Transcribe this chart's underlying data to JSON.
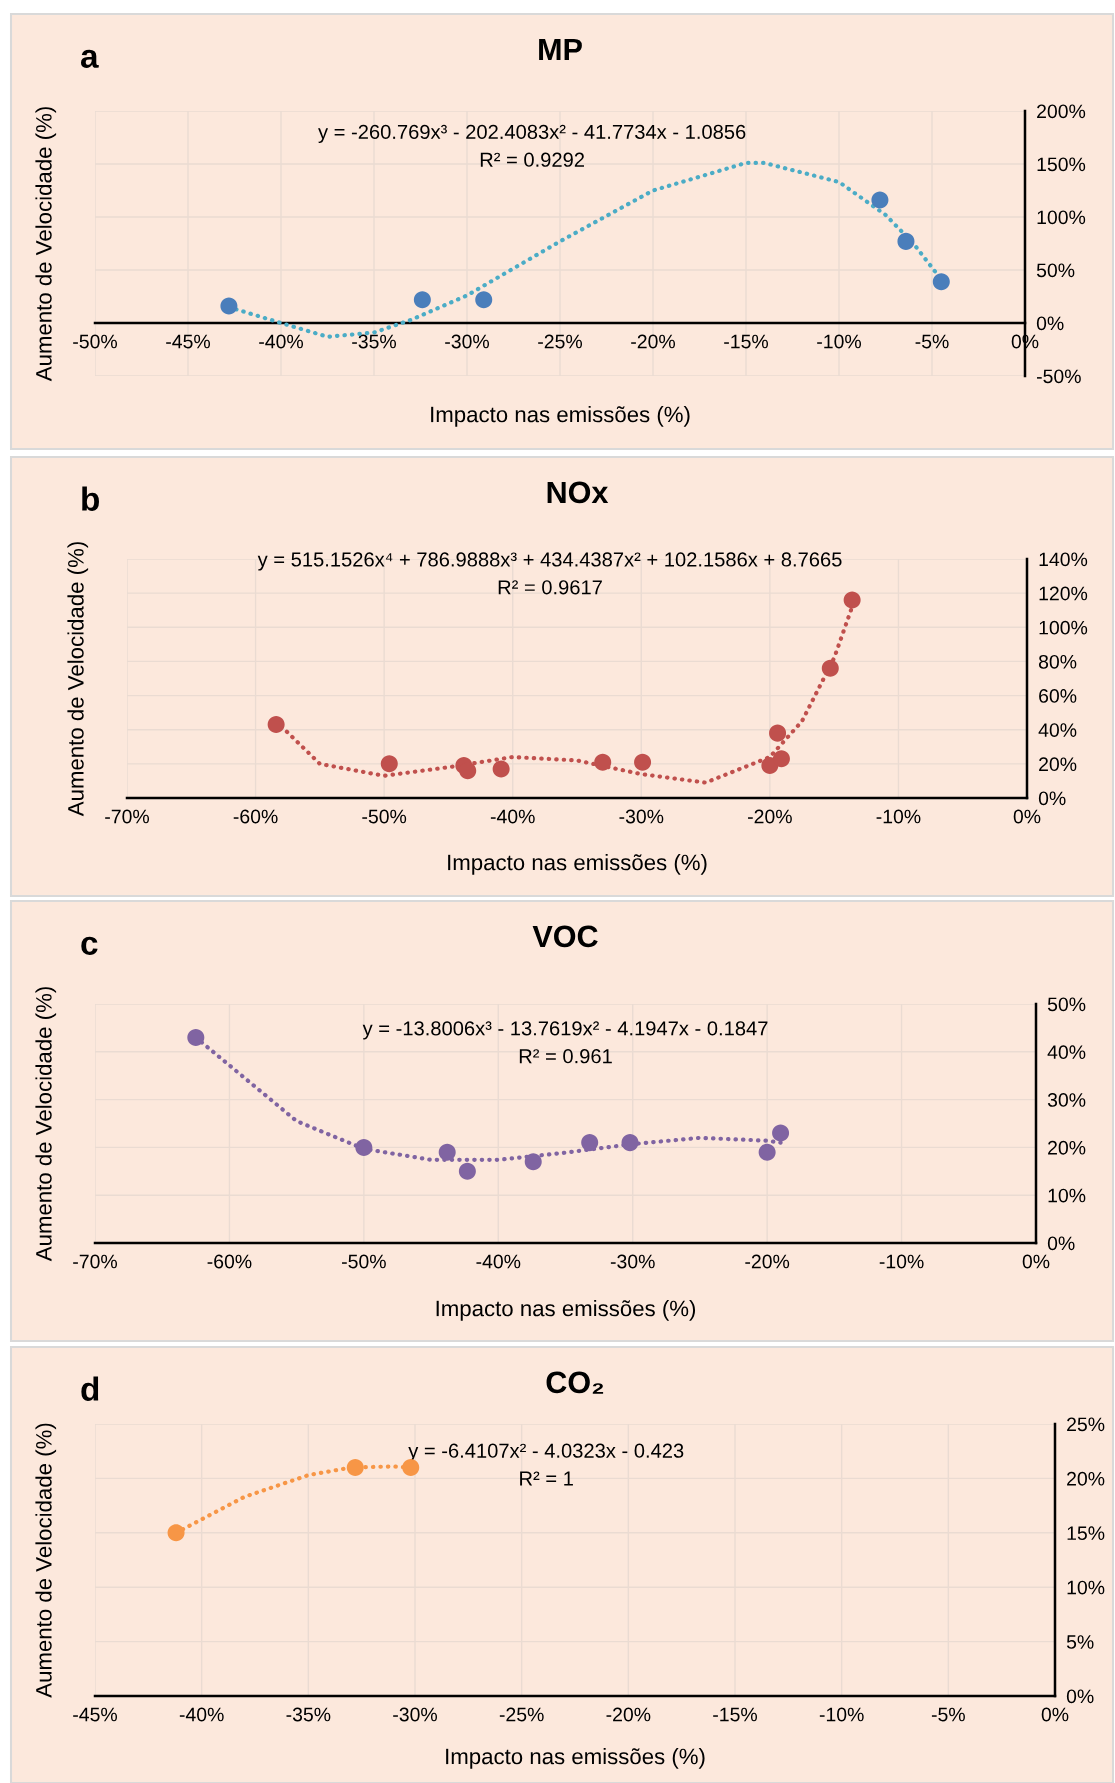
{
  "chart_data": [
    {
      "type": "scatter",
      "title": "MP",
      "xlabel": "Impacto nas emissões (%)",
      "ylabel": "Aumento de Velocidade (%)",
      "annotations": [
        "a",
        "y = -260.769x³ - 202.4083x² - 41.7734x - 1.0856",
        "R² = 0.9292"
      ],
      "grid": true,
      "xlim": [
        -50,
        0
      ],
      "ylim": [
        -50,
        200
      ],
      "xticks": [
        {
          "value": -50,
          "label": "-50%"
        },
        {
          "value": -45,
          "label": "-45%"
        },
        {
          "value": -40,
          "label": "-40%"
        },
        {
          "value": -35,
          "label": "-35%"
        },
        {
          "value": -30,
          "label": "-30%"
        },
        {
          "value": -25,
          "label": "-25%"
        },
        {
          "value": -20,
          "label": "-20%"
        },
        {
          "value": -15,
          "label": "-15%"
        },
        {
          "value": -10,
          "label": "-10%"
        },
        {
          "value": -5,
          "label": "-5%"
        },
        {
          "value": 0,
          "label": "0%"
        }
      ],
      "yticks": [
        {
          "value": -50,
          "label": "-50%"
        },
        {
          "value": 0,
          "label": "0%"
        },
        {
          "value": 50,
          "label": "50%"
        },
        {
          "value": 100,
          "label": "100%"
        },
        {
          "value": 150,
          "label": "150%"
        },
        {
          "value": 200,
          "label": "200%"
        }
      ],
      "series": [
        {
          "type": "line",
          "color": "#4bacc6",
          "line_style": "dotted",
          "marker": "none",
          "x": [
            -42.8,
            -40,
            -37.5,
            -35,
            -33,
            -30,
            -25,
            -20,
            -15,
            -14,
            -10,
            -7.5,
            -6,
            -4.5
          ],
          "values": [
            15,
            0,
            -13,
            -9,
            3,
            26,
            77,
            125,
            151,
            151,
            133,
            102,
            75,
            41
          ]
        },
        {
          "type": "scatter",
          "color": "#4a7ebb",
          "marker": "circle",
          "x": [
            -42.8,
            -32.4,
            -29.1,
            -7.8,
            -6.4,
            -4.5
          ],
          "values": [
            16,
            22,
            22,
            116,
            77,
            39
          ]
        }
      ]
    },
    {
      "type": "scatter",
      "title": "NOx",
      "xlabel": "Impacto nas emissões (%)",
      "ylabel": "Aumento de Velocidade (%)",
      "annotations": [
        "b",
        "y = 515.1526x⁴ + 786.9888x³ + 434.4387x² + 102.1586x + 8.7665",
        "R² = 0.9617"
      ],
      "grid": true,
      "xlim": [
        -70,
        0
      ],
      "ylim": [
        0,
        140
      ],
      "xticks": [
        {
          "value": -70,
          "label": "-70%"
        },
        {
          "value": -60,
          "label": "-60%"
        },
        {
          "value": -50,
          "label": "-50%"
        },
        {
          "value": -40,
          "label": "-40%"
        },
        {
          "value": -30,
          "label": "-30%"
        },
        {
          "value": -20,
          "label": "-20%"
        },
        {
          "value": -10,
          "label": "-10%"
        },
        {
          "value": 0,
          "label": "0%"
        }
      ],
      "yticks": [
        {
          "value": 0,
          "label": "0%"
        },
        {
          "value": 20,
          "label": "20%"
        },
        {
          "value": 40,
          "label": "40%"
        },
        {
          "value": 60,
          "label": "60%"
        },
        {
          "value": 80,
          "label": "80%"
        },
        {
          "value": 100,
          "label": "100%"
        },
        {
          "value": 120,
          "label": "120%"
        },
        {
          "value": 140,
          "label": "140%"
        }
      ],
      "series": [
        {
          "type": "line",
          "color": "#c0504d",
          "line_style": "dotted",
          "marker": "none",
          "x": [
            -58.4,
            -55,
            -50,
            -45,
            -40,
            -35,
            -30,
            -25,
            -20,
            -17.5,
            -15,
            -13.6
          ],
          "values": [
            45,
            20,
            13,
            18,
            24,
            22,
            14,
            9,
            24,
            45,
            82,
            112
          ]
        },
        {
          "type": "scatter",
          "color": "#c0504d",
          "marker": "circle",
          "x": [
            -58.4,
            -49.6,
            -43.8,
            -43.5,
            -40.9,
            -33,
            -29.9,
            -20,
            -19.4,
            -19.1,
            -15.3,
            -13.6
          ],
          "values": [
            43,
            20,
            19,
            16,
            17,
            21,
            21,
            19,
            38,
            23,
            76,
            116
          ]
        }
      ]
    },
    {
      "type": "scatter",
      "title": "VOC",
      "xlabel": "Impacto nas emissões (%)",
      "ylabel": "Aumento de Velocidade (%)",
      "annotations": [
        "c",
        "y = -13.8006x³ - 13.7619x² - 4.1947x - 0.1847",
        "R² = 0.961"
      ],
      "grid": true,
      "xlim": [
        -70,
        0
      ],
      "ylim": [
        0,
        50
      ],
      "xticks": [
        {
          "value": -70,
          "label": "-70%"
        },
        {
          "value": -60,
          "label": "-60%"
        },
        {
          "value": -50,
          "label": "-50%"
        },
        {
          "value": -40,
          "label": "-40%"
        },
        {
          "value": -30,
          "label": "-30%"
        },
        {
          "value": -20,
          "label": "-20%"
        },
        {
          "value": -10,
          "label": "-10%"
        },
        {
          "value": 0,
          "label": "0%"
        }
      ],
      "yticks": [
        {
          "value": 0,
          "label": "0%"
        },
        {
          "value": 10,
          "label": "10%"
        },
        {
          "value": 20,
          "label": "20%"
        },
        {
          "value": 30,
          "label": "30%"
        },
        {
          "value": 40,
          "label": "40%"
        },
        {
          "value": 50,
          "label": "50%"
        }
      ],
      "series": [
        {
          "type": "line",
          "color": "#8064a2",
          "line_style": "dotted",
          "marker": "none",
          "x": [
            -62.5,
            -55,
            -50,
            -45,
            -40,
            -35,
            -30,
            -25,
            -20,
            -19
          ],
          "values": [
            43,
            25.5,
            19.7,
            17.4,
            17.4,
            18.9,
            20.7,
            22,
            21.4,
            21
          ]
        },
        {
          "type": "scatter",
          "color": "#8064a2",
          "marker": "circle",
          "x": [
            -62.5,
            -50,
            -43.8,
            -42.3,
            -37.4,
            -33.2,
            -30.2,
            -20,
            -19
          ],
          "values": [
            43,
            20,
            19,
            15,
            17,
            21,
            21,
            19,
            23
          ]
        }
      ]
    },
    {
      "type": "scatter",
      "title": "CO₂",
      "xlabel": "Impacto nas emissões (%)",
      "ylabel": "Aumento de Velocidade (%)",
      "annotations": [
        "d",
        "y = -6.4107x² - 4.0323x - 0.423",
        "R² = 1"
      ],
      "grid": true,
      "xlim": [
        -45,
        0
      ],
      "ylim": [
        0,
        25
      ],
      "xticks": [
        {
          "value": -45,
          "label": "-45%"
        },
        {
          "value": -40,
          "label": "-40%"
        },
        {
          "value": -35,
          "label": "-35%"
        },
        {
          "value": -30,
          "label": "-30%"
        },
        {
          "value": -25,
          "label": "-25%"
        },
        {
          "value": -20,
          "label": "-20%"
        },
        {
          "value": -15,
          "label": "-15%"
        },
        {
          "value": -10,
          "label": "-10%"
        },
        {
          "value": -5,
          "label": "-5%"
        },
        {
          "value": 0,
          "label": "0%"
        }
      ],
      "yticks": [
        {
          "value": 0,
          "label": "0%"
        },
        {
          "value": 5,
          "label": "5%"
        },
        {
          "value": 10,
          "label": "10%"
        },
        {
          "value": 15,
          "label": "15%"
        },
        {
          "value": 20,
          "label": "20%"
        },
        {
          "value": 25,
          "label": "25%"
        }
      ],
      "series": [
        {
          "type": "line",
          "color": "#f79646",
          "line_style": "dotted",
          "marker": "none",
          "x": [
            -41.2,
            -38,
            -35,
            -33,
            -31,
            -30.2
          ],
          "values": [
            15,
            18.3,
            20.3,
            21,
            21.1,
            21
          ]
        },
        {
          "type": "scatter",
          "color": "#f79646",
          "marker": "circle",
          "x": [
            -41.2,
            -32.8,
            -30.2
          ],
          "values": [
            15,
            21,
            21
          ]
        }
      ]
    }
  ]
}
